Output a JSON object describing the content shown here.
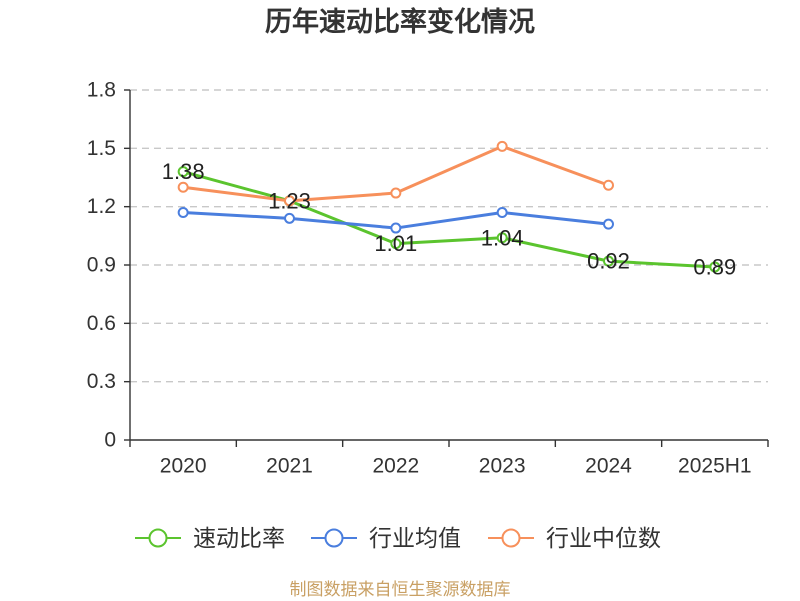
{
  "chart_data": {
    "type": "line",
    "title": "历年速动比率变化情况",
    "categories": [
      "2020",
      "2021",
      "2022",
      "2023",
      "2024",
      "2025H1"
    ],
    "ylim": [
      0,
      1.8
    ],
    "yticks": [
      0,
      0.3,
      0.6,
      0.9,
      1.2,
      1.5,
      1.8
    ],
    "grid": true,
    "legend": "bottom",
    "series": [
      {
        "name": "速动比率",
        "color": "#5bc42e",
        "values": [
          1.38,
          1.23,
          1.01,
          1.04,
          0.92,
          0.89
        ],
        "data_labels": true
      },
      {
        "name": "行业均值",
        "color": "#4a7ede",
        "values": [
          1.17,
          1.14,
          1.09,
          1.17,
          1.11,
          null
        ],
        "data_labels": false
      },
      {
        "name": "行业中位数",
        "color": "#f7905b",
        "values": [
          1.3,
          1.23,
          1.27,
          1.51,
          1.31,
          null
        ],
        "data_labels": false
      }
    ]
  },
  "source_note": "制图数据来自恒生聚源数据库",
  "colors": {
    "source_note": "#c9a064"
  }
}
